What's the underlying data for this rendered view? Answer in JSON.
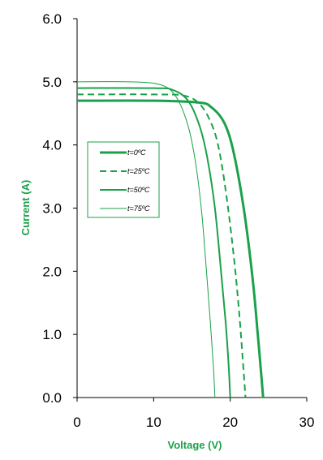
{
  "colors": {
    "series": "#1aa14a",
    "axis": "#000000",
    "background": "#ffffff"
  },
  "chart_data": {
    "type": "line",
    "title": "",
    "xlabel": "Voltage (V)",
    "ylabel": "Current (A)",
    "xlim": [
      0,
      30
    ],
    "ylim": [
      0,
      6
    ],
    "x_ticks": [
      0,
      10,
      20,
      30
    ],
    "x_tick_labels": [
      "0",
      "10",
      "20",
      "30"
    ],
    "y_ticks": [
      0,
      1,
      2,
      3,
      4,
      5,
      6
    ],
    "y_tick_labels": [
      "0.0",
      "1.0",
      "2.0",
      "3.0",
      "4.0",
      "5.0",
      "6.0"
    ],
    "grid": false,
    "legend_position": "left-middle",
    "series": [
      {
        "name": "t=0ºC",
        "line_style": "solid-thick",
        "x": [
          0,
          10,
          16,
          17.5,
          19,
          20,
          21,
          22,
          23,
          23.6,
          24.1,
          24.3
        ],
        "y": [
          4.7,
          4.7,
          4.67,
          4.6,
          4.4,
          4.1,
          3.55,
          2.8,
          1.8,
          1.0,
          0.3,
          0
        ]
      },
      {
        "name": "t=25ºC",
        "line_style": "dashed",
        "x": [
          0,
          10,
          14,
          16,
          17.5,
          18.5,
          19.5,
          20.5,
          21.2,
          21.7,
          22
        ],
        "y": [
          4.8,
          4.8,
          4.78,
          4.65,
          4.35,
          3.95,
          3.2,
          2.2,
          1.3,
          0.5,
          0
        ]
      },
      {
        "name": "t=50ºC",
        "line_style": "solid",
        "x": [
          0,
          10,
          12.5,
          14.5,
          16,
          17,
          18,
          18.8,
          19.4,
          19.8,
          20
        ],
        "y": [
          4.9,
          4.9,
          4.87,
          4.7,
          4.3,
          3.8,
          3.0,
          2.0,
          1.2,
          0.5,
          0
        ]
      },
      {
        "name": "t=75ºC",
        "line_style": "thin",
        "x": [
          0,
          7,
          11,
          13,
          14.5,
          15.5,
          16.3,
          16.9,
          17.4,
          17.8,
          18
        ],
        "y": [
          5.0,
          5.0,
          4.95,
          4.75,
          4.3,
          3.7,
          2.9,
          2.0,
          1.2,
          0.5,
          0
        ]
      }
    ]
  }
}
